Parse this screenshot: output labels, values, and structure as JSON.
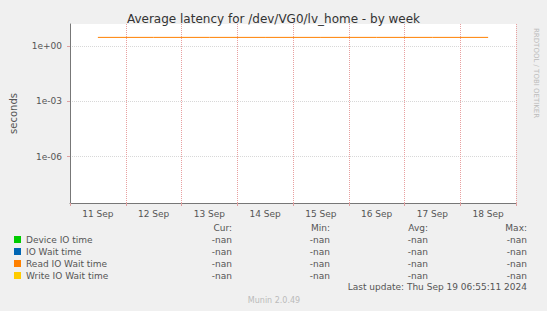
{
  "chart_data": {
    "type": "line",
    "title": "Average latency for /dev/VG0/lv_home - by week",
    "y_label": "seconds",
    "categories": [
      "11 Sep",
      "12 Sep",
      "13 Sep",
      "14 Sep",
      "15 Sep",
      "16 Sep",
      "17 Sep",
      "18 Sep"
    ],
    "series": [
      {
        "name": "Device IO time",
        "color": "#00cc00",
        "values": [
          null,
          null,
          null,
          null,
          null,
          null,
          null,
          null
        ],
        "stats": [
          "-nan",
          "-nan",
          "-nan",
          "-nan"
        ]
      },
      {
        "name": "IO Wait time",
        "color": "#0066b3",
        "values": [
          null,
          null,
          null,
          null,
          null,
          null,
          null,
          null
        ],
        "stats": [
          "-nan",
          "-nan",
          "-nan",
          "-nan"
        ]
      },
      {
        "name": "Read IO Wait time",
        "color": "#ff8000",
        "values": [
          3,
          3,
          3,
          3,
          3,
          3,
          3,
          3
        ],
        "stats": [
          "-nan",
          "-nan",
          "-nan",
          "-nan"
        ]
      },
      {
        "name": "Write IO Wait time",
        "color": "#ffcc00",
        "values": [
          null,
          null,
          null,
          null,
          null,
          null,
          null,
          null
        ],
        "stats": [
          "-nan",
          "-nan",
          "-nan",
          "-nan"
        ]
      }
    ],
    "stat_columns": [
      "Cur:",
      "Min:",
      "Avg:",
      "Max:"
    ],
    "ylim": [
      3e-09,
      16
    ],
    "yticks": [
      {
        "value": 1e-06,
        "label": "1e-06"
      },
      {
        "value": 0.001,
        "label": "1e-03"
      },
      {
        "value": 1,
        "label": "1e+00"
      }
    ],
    "log": "y",
    "grid": true,
    "footer": "Munin 2.0.49",
    "last_update": "Last update: Thu Sep 19 06:55:11 2024",
    "watermark": "RRDTOOL / TOBI OETIKER"
  }
}
